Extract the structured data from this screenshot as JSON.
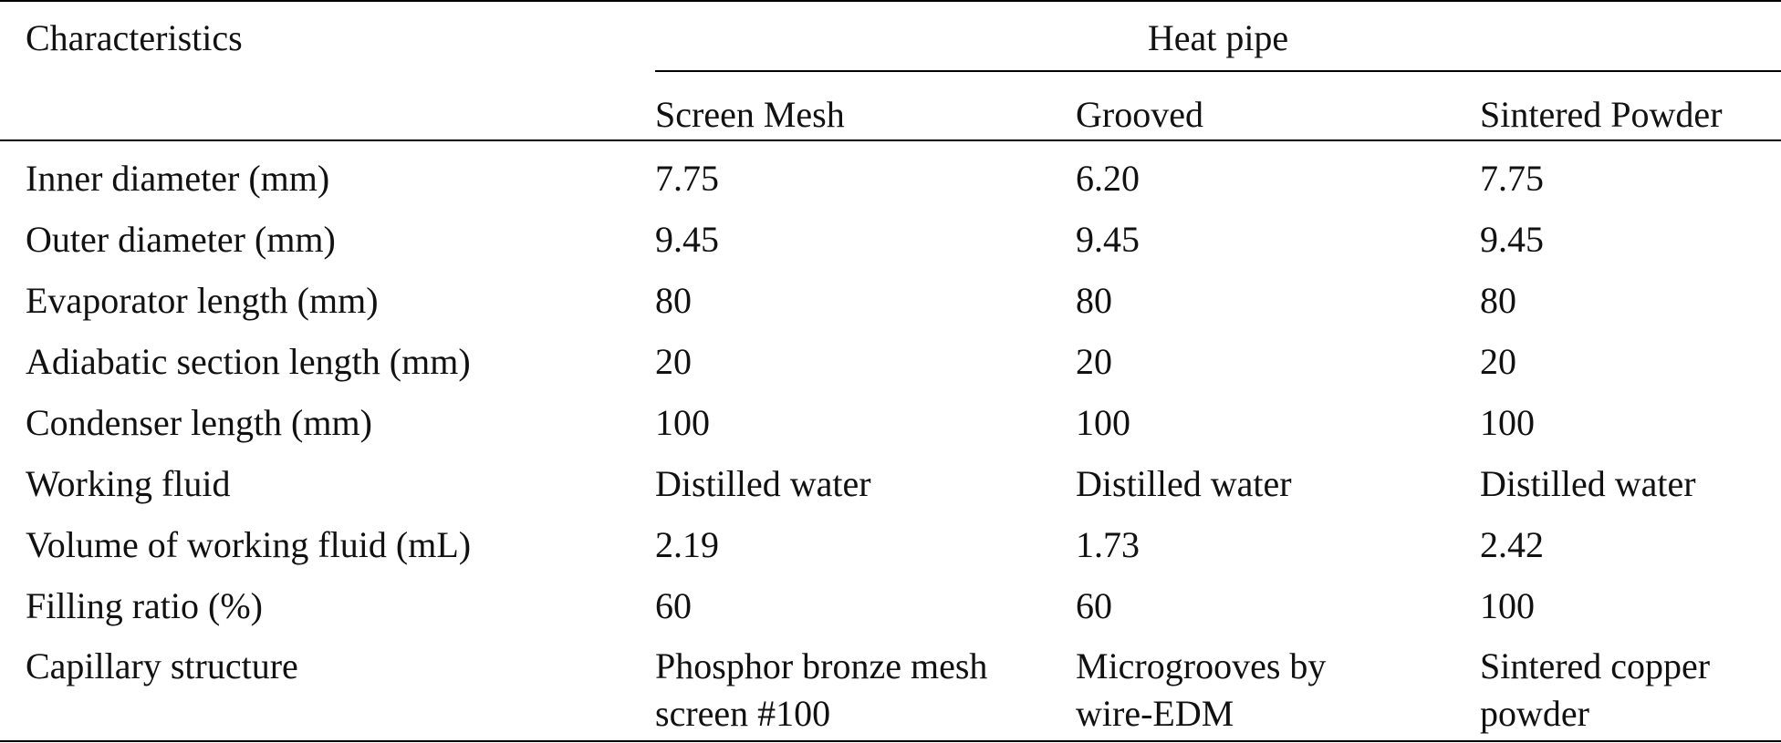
{
  "table": {
    "header": {
      "characteristics": "Characteristics",
      "group": "Heat pipe",
      "columns": [
        "Screen Mesh",
        "Grooved",
        "Sintered Powder"
      ]
    },
    "rows": [
      {
        "label": "Inner diameter (mm)",
        "values": [
          "7.75",
          "6.20",
          "7.75"
        ]
      },
      {
        "label": "Outer diameter (mm)",
        "values": [
          "9.45",
          "9.45",
          "9.45"
        ]
      },
      {
        "label": "Evaporator length (mm)",
        "values": [
          "80",
          "80",
          "80"
        ]
      },
      {
        "label": "Adiabatic section length (mm)",
        "values": [
          "20",
          "20",
          "20"
        ]
      },
      {
        "label": "Condenser length (mm)",
        "values": [
          "100",
          "100",
          "100"
        ]
      },
      {
        "label": "Working fluid",
        "values": [
          "Distilled water",
          "Distilled water",
          "Distilled water"
        ]
      },
      {
        "label": "Volume of working fluid (mL)",
        "values": [
          "2.19",
          "1.73",
          "2.42"
        ]
      },
      {
        "label": "Filling ratio (%)",
        "values": [
          "60",
          "60",
          "100"
        ]
      },
      {
        "label": "Capillary structure",
        "values": [
          "Phosphor bronze mesh screen #100",
          "Microgrooves by wire-EDM",
          "Sintered copper powder"
        ]
      }
    ]
  }
}
